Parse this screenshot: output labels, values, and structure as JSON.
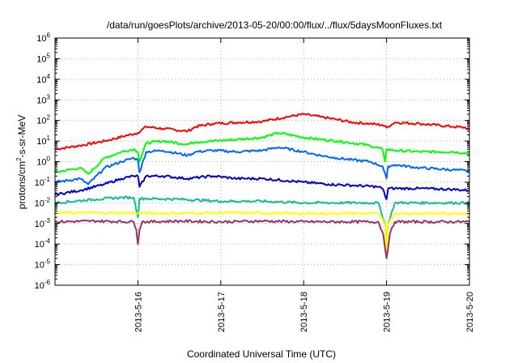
{
  "chart_data": {
    "type": "line",
    "title": "/data/run/goesPlots/archive/2013-05-20/00:00/flux/../flux/5daysMoonFluxes.txt",
    "xlabel": "Coordinated Universal Time (UTC)",
    "ylabel": {
      "prefix": "protons/cm",
      "sup": "2",
      "suffix": "-s-sr-MeV"
    },
    "yscale": "log",
    "ylim": [
      1e-06,
      1000000.0
    ],
    "xlim": [
      0,
      5
    ],
    "grid": true,
    "x_ticks": [
      {
        "x": 1,
        "label": "2013-5-16"
      },
      {
        "x": 2,
        "label": "2013-5-17"
      },
      {
        "x": 3,
        "label": "2013-5-18"
      },
      {
        "x": 4,
        "label": "2013-5-19"
      },
      {
        "x": 5,
        "label": "2013-5-20"
      }
    ],
    "y_ticks": [
      {
        "exp": 6,
        "label": "10",
        "sup": "6"
      },
      {
        "exp": 5,
        "label": "10",
        "sup": "5"
      },
      {
        "exp": 4,
        "label": "10",
        "sup": "4"
      },
      {
        "exp": 3,
        "label": "10",
        "sup": "3"
      },
      {
        "exp": 2,
        "label": "10",
        "sup": "2"
      },
      {
        "exp": 1,
        "label": "10",
        "sup": "1"
      },
      {
        "exp": 0,
        "label": "10",
        "sup": "0"
      },
      {
        "exp": -1,
        "label": "10",
        "sup": "-1"
      },
      {
        "exp": -2,
        "label": "10",
        "sup": "-2"
      },
      {
        "exp": -3,
        "label": "10",
        "sup": "-3"
      },
      {
        "exp": -4,
        "label": "10",
        "sup": "-4"
      },
      {
        "exp": -5,
        "label": "10",
        "sup": "-5"
      },
      {
        "exp": -6,
        "label": "10",
        "sup": "-6"
      }
    ],
    "series": [
      {
        "color": "#ff0000",
        "x": [
          0,
          0.3,
          0.6,
          0.85,
          1.0,
          1.1,
          1.3,
          1.6,
          1.7,
          1.9,
          2.2,
          2.5,
          2.8,
          3.0,
          3.2,
          3.4,
          3.6,
          3.8,
          3.95,
          4.0,
          4.1,
          4.4,
          4.8,
          4.95,
          5.0
        ],
        "y": [
          4,
          6,
          10,
          18,
          25,
          50,
          40,
          30,
          50,
          70,
          80,
          90,
          150,
          200,
          150,
          110,
          80,
          70,
          60,
          45,
          80,
          70,
          50,
          45,
          35
        ]
      },
      {
        "color": "#00ff00",
        "x": [
          0,
          0.3,
          0.4,
          0.6,
          0.8,
          0.95,
          1.0,
          1.02,
          1.1,
          1.3,
          1.6,
          1.7,
          1.9,
          2.2,
          2.5,
          2.7,
          3.0,
          3.2,
          3.4,
          3.6,
          3.8,
          3.95,
          3.98,
          4.0,
          4.1,
          4.4,
          4.8,
          5.0
        ],
        "y": [
          0.3,
          0.5,
          0.25,
          1.5,
          3,
          4,
          3,
          1,
          8,
          10,
          7,
          9,
          10,
          12,
          15,
          25,
          15,
          12,
          10,
          8,
          6,
          4,
          1,
          4,
          3.5,
          3,
          3,
          2.5
        ]
      },
      {
        "color": "#0066ff",
        "x": [
          0,
          0.3,
          0.4,
          0.6,
          0.8,
          0.95,
          1.0,
          1.02,
          1.1,
          1.3,
          1.6,
          1.7,
          1.9,
          2.2,
          2.5,
          2.7,
          3.0,
          3.2,
          3.4,
          3.6,
          3.8,
          3.95,
          4.0,
          4.02,
          4.1,
          4.4,
          4.8,
          5.0
        ],
        "y": [
          0.1,
          0.15,
          0.08,
          0.5,
          1,
          1.5,
          1.2,
          0.3,
          3,
          3.5,
          2,
          3,
          3.5,
          3,
          3.5,
          5,
          3,
          2,
          1.5,
          1.2,
          1,
          0.6,
          0.15,
          0.6,
          0.7,
          0.5,
          0.4,
          0.35
        ]
      },
      {
        "color": "#0000cc",
        "x": [
          0,
          0.3,
          0.6,
          0.8,
          0.95,
          1.0,
          1.02,
          1.1,
          1.3,
          1.6,
          1.9,
          2.2,
          2.5,
          2.8,
          3.0,
          3.3,
          3.6,
          3.9,
          3.95,
          4.0,
          4.02,
          4.1,
          4.4,
          4.8,
          5.0
        ],
        "y": [
          0.025,
          0.04,
          0.08,
          0.15,
          0.2,
          0.2,
          0.06,
          0.2,
          0.2,
          0.15,
          0.2,
          0.15,
          0.15,
          0.12,
          0.1,
          0.08,
          0.07,
          0.06,
          0.05,
          0.015,
          0.05,
          0.05,
          0.05,
          0.045,
          0.04
        ]
      },
      {
        "color": "#11bb99",
        "x": [
          0,
          0.5,
          0.8,
          0.95,
          1.0,
          1.02,
          1.1,
          1.5,
          2.0,
          2.5,
          3.0,
          3.5,
          3.9,
          3.98,
          4.0,
          4.02,
          4.1,
          4.5,
          5.0
        ],
        "y": [
          0.01,
          0.015,
          0.018,
          0.018,
          0.002,
          0.016,
          0.016,
          0.015,
          0.012,
          0.012,
          0.01,
          0.01,
          0.01,
          0.001,
          5e-05,
          0.001,
          0.01,
          0.01,
          0.01
        ]
      },
      {
        "color": "#ffff00",
        "x": [
          0,
          0.5,
          1.0,
          1.5,
          2.0,
          2.5,
          3.0,
          3.5,
          3.9,
          3.98,
          4.0,
          4.02,
          4.1,
          4.5,
          5.0
        ],
        "y": [
          0.0032,
          0.0033,
          0.0032,
          0.0031,
          0.0033,
          0.0032,
          0.003,
          0.0031,
          0.0031,
          0.001,
          5e-05,
          0.001,
          0.003,
          0.0031,
          0.0031
        ]
      },
      {
        "color": "#993366",
        "x": [
          0,
          0.5,
          0.95,
          0.98,
          1.0,
          1.02,
          1.05,
          1.5,
          2.0,
          2.5,
          3.0,
          3.5,
          3.9,
          3.96,
          4.0,
          4.04,
          4.1,
          4.5,
          5.0
        ],
        "y": [
          0.0012,
          0.0013,
          0.0012,
          0.0005,
          0.0001,
          0.0005,
          0.0012,
          0.0013,
          0.0012,
          0.0013,
          0.0012,
          0.0012,
          0.0012,
          0.0003,
          2e-05,
          0.0003,
          0.0012,
          0.0012,
          0.0012
        ]
      }
    ]
  }
}
